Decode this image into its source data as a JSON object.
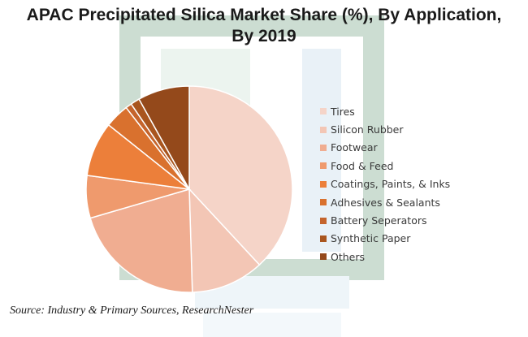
{
  "chart_data": {
    "type": "pie",
    "title_lines": [
      "APAC Precipitated Silica Market Share (%), By Application,",
      "By 2019"
    ],
    "categories": [
      "Tires",
      "Silicon Rubber",
      "Footwear",
      "Food & Feed",
      "Coatings, Paints, & Inks",
      "Adhesives & Sealants",
      "Battery Seperators",
      "Synthetic Paper",
      "Others"
    ],
    "values": [
      40,
      12,
      22,
      7,
      9,
      4,
      1,
      1.5,
      8.5
    ],
    "colors": [
      "#f5d4c8",
      "#f3c6b5",
      "#f0ad91",
      "#ef9a6d",
      "#ec7f3a",
      "#d9712e",
      "#c5642c",
      "#a9551e",
      "#94491b"
    ],
    "start_angle_deg": 0,
    "direction": "clockwise",
    "legend_position": "right"
  },
  "source": "Source: Industry & Primary Sources, ResearchNester"
}
